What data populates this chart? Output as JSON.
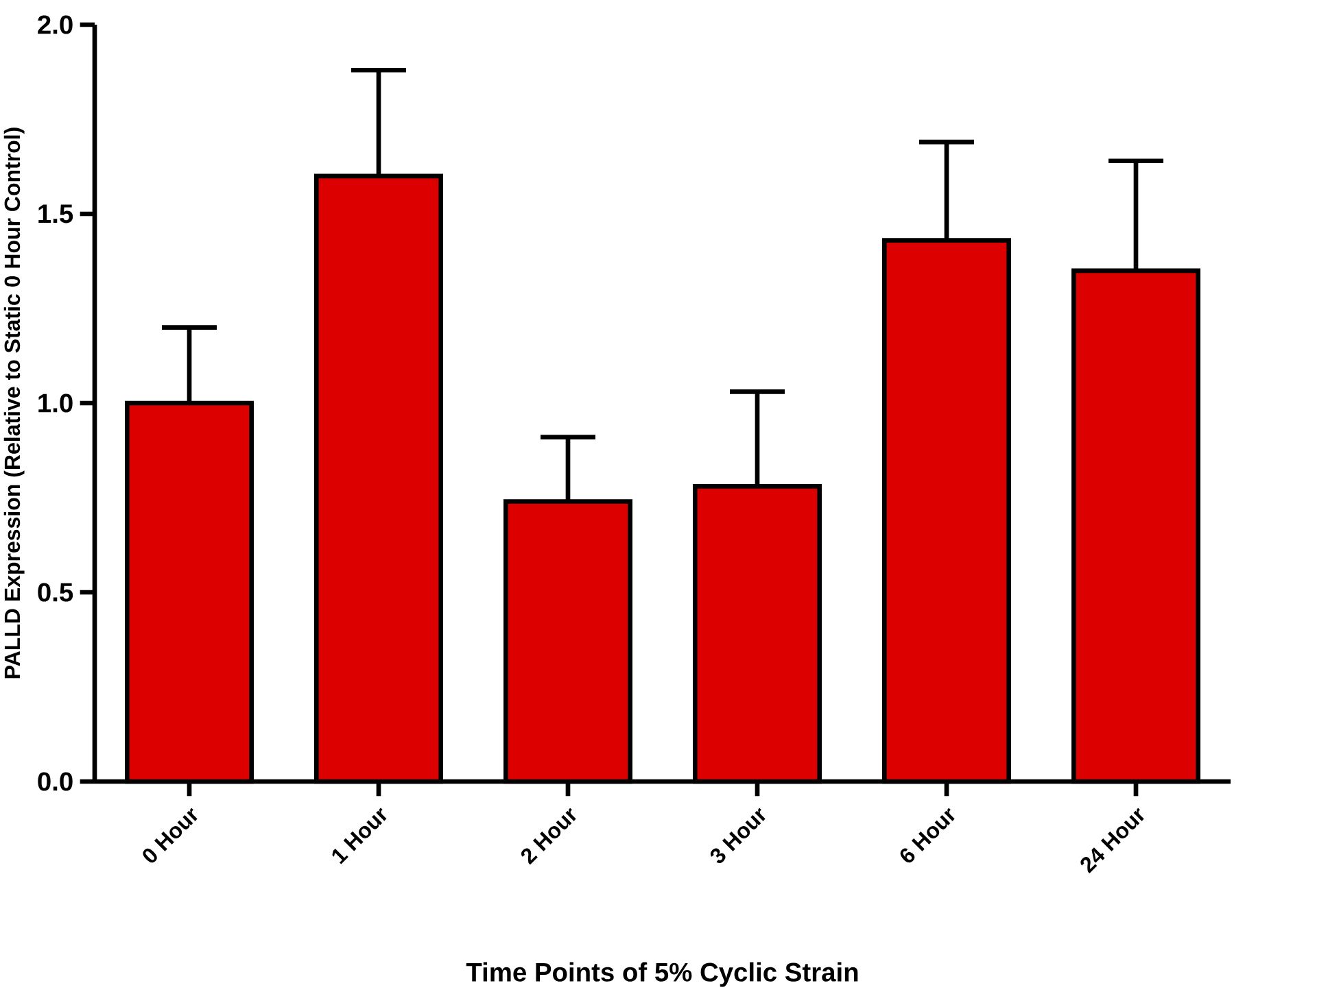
{
  "chart_data": {
    "type": "bar",
    "xlabel": "Time Points of 5% Cyclic Strain",
    "ylabel": "PALLD Expression (Relative to Static 0 Hour Control)",
    "categories": [
      "0 Hour",
      "1 Hour",
      "2 Hour",
      "3 Hour",
      "6 Hour",
      "24 Hour"
    ],
    "values": [
      1.0,
      1.6,
      0.74,
      0.78,
      1.43,
      1.35
    ],
    "errors": [
      [
        1.0,
        1.2
      ],
      [
        1.6,
        1.88
      ],
      [
        0.74,
        0.91
      ],
      [
        0.78,
        1.03
      ],
      [
        1.43,
        1.69
      ],
      [
        1.35,
        1.64
      ]
    ],
    "color": "#dd0000",
    "ylim": [
      0,
      2
    ],
    "yticks": [
      {
        "value": 0,
        "label": "0.0"
      },
      {
        "value": 0.5,
        "label": "0.5"
      },
      {
        "value": 1,
        "label": "1.0"
      },
      {
        "value": 1.5,
        "label": "1.5"
      },
      {
        "value": 2,
        "label": "2.0"
      }
    ],
    "grid": false
  }
}
